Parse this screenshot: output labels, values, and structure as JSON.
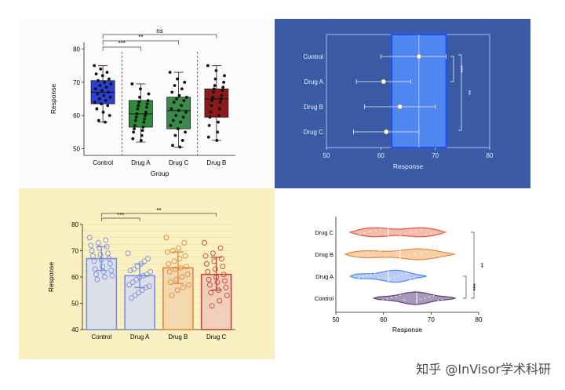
{
  "watermark": "知乎 @InVisor学术科研",
  "colors": {
    "control": "#2a3fd6",
    "drug_a": "#2e8b3a",
    "drug_c_green": "#3a8a4a",
    "drug_b_red": "#8c1a1a",
    "panel2_bg": "#3b5aa5",
    "panel3_bg": "#fbf0c1",
    "bar_blue": "#7b8fe0",
    "bar_orange": "#e08a3c",
    "bar_red": "#c0463a"
  },
  "chart_data": [
    {
      "type": "box",
      "xlabel": "Group",
      "ylabel": "Response",
      "ylim": [
        48,
        82
      ],
      "yticks": [
        50,
        60,
        70,
        80
      ],
      "categories": [
        "Control",
        "Drug A",
        "Drug C",
        "Drug B"
      ],
      "series": [
        {
          "box": {
            "min": 58,
            "q1": 63.5,
            "median": 67,
            "q3": 70.5,
            "max": 75
          },
          "points": [
            75,
            74,
            73,
            72.5,
            72,
            71,
            70.5,
            70,
            69.5,
            69,
            68.5,
            68,
            67.5,
            67,
            66.5,
            66,
            65.5,
            65,
            64.5,
            64,
            63.5,
            63,
            62,
            61,
            60,
            58.5,
            58
          ]
        },
        {
          "box": {
            "min": 52,
            "q1": 56.5,
            "median": 60.5,
            "q3": 64.5,
            "max": 69.5
          },
          "points": [
            69.5,
            68,
            66.5,
            65.5,
            64.5,
            64,
            63.5,
            63,
            62.5,
            62,
            61,
            60.5,
            60,
            59.5,
            59,
            58.5,
            58,
            57,
            56.5,
            56,
            55.5,
            55,
            54,
            53,
            52.5
          ]
        },
        {
          "box": {
            "min": 50.5,
            "q1": 56,
            "median": 61.5,
            "q3": 65.5,
            "max": 73
          },
          "points": [
            73,
            71,
            70,
            69,
            68,
            67,
            66,
            65.5,
            65,
            64.5,
            64,
            63,
            62,
            61.5,
            61,
            60,
            59.5,
            58.5,
            58,
            57,
            56,
            55,
            54,
            52.5,
            51,
            50.5
          ]
        },
        {
          "box": {
            "min": 52.5,
            "q1": 59.5,
            "median": 65,
            "q3": 68,
            "max": 75
          },
          "points": [
            75,
            73.5,
            72,
            71,
            70,
            69,
            68.5,
            68,
            67.5,
            67,
            66,
            65.5,
            65,
            64.5,
            64,
            63,
            62,
            61,
            60,
            59.5,
            58,
            57,
            55,
            53.5,
            52.5
          ]
        }
      ],
      "annotations": [
        "***",
        "**",
        "ns"
      ]
    },
    {
      "type": "forest",
      "xlabel": "Response",
      "xlim": [
        50,
        80
      ],
      "xticks": [
        50,
        60,
        70,
        80
      ],
      "categories": [
        "Control",
        "Drug A",
        "Drug B",
        "Drug C"
      ],
      "mean": [
        67,
        60.5,
        63.5,
        61
      ],
      "low": [
        60,
        55.5,
        57,
        55
      ],
      "high": [
        72,
        65.5,
        70,
        67
      ],
      "band": [
        62,
        72
      ],
      "annotations": [
        "***",
        "**"
      ]
    },
    {
      "type": "bar",
      "ylabel": "Response",
      "ylim": [
        40,
        80
      ],
      "yticks": [
        40,
        50,
        60,
        70,
        80
      ],
      "categories": [
        "Control",
        "Drug A",
        "Drug B",
        "Drug C"
      ],
      "values": [
        67,
        60.5,
        63.5,
        61
      ],
      "err_low": [
        62.5,
        56,
        57.5,
        55
      ],
      "err_high": [
        71.5,
        65,
        69.5,
        67.5
      ],
      "points": [
        [
          75,
          74,
          73,
          72,
          71.5,
          71,
          70,
          69,
          68.5,
          68,
          67,
          66.5,
          66,
          65,
          64,
          63,
          62.5,
          62,
          61,
          60.5,
          60,
          59
        ],
        [
          69,
          67,
          66,
          65,
          64,
          63,
          62.5,
          62,
          61,
          60.5,
          60,
          59,
          58,
          57,
          56.5,
          56,
          55,
          54,
          53,
          52
        ],
        [
          75,
          73,
          71,
          70,
          69.5,
          68,
          67,
          66,
          65,
          64,
          63.5,
          63,
          62,
          61,
          60,
          59,
          58,
          57,
          56,
          55,
          53
        ],
        [
          73,
          71,
          69,
          68,
          67,
          66,
          65,
          64,
          63,
          62,
          61,
          60,
          59,
          58.5,
          58,
          57,
          56,
          55,
          54,
          53,
          51,
          49
        ]
      ],
      "annotations": [
        "***",
        "**"
      ]
    },
    {
      "type": "violin",
      "xlabel": "Response",
      "xlim": [
        50,
        80
      ],
      "xticks": [
        50,
        60,
        70,
        80
      ],
      "categories": [
        "Drug C",
        "Drug B",
        "Drug A",
        "Control"
      ],
      "ranges": [
        [
          53,
          73
        ],
        [
          52,
          75
        ],
        [
          53,
          69
        ],
        [
          58,
          75
        ]
      ],
      "medians": [
        61,
        63.5,
        61,
        67
      ],
      "annotations": [
        "**",
        "***"
      ]
    }
  ]
}
